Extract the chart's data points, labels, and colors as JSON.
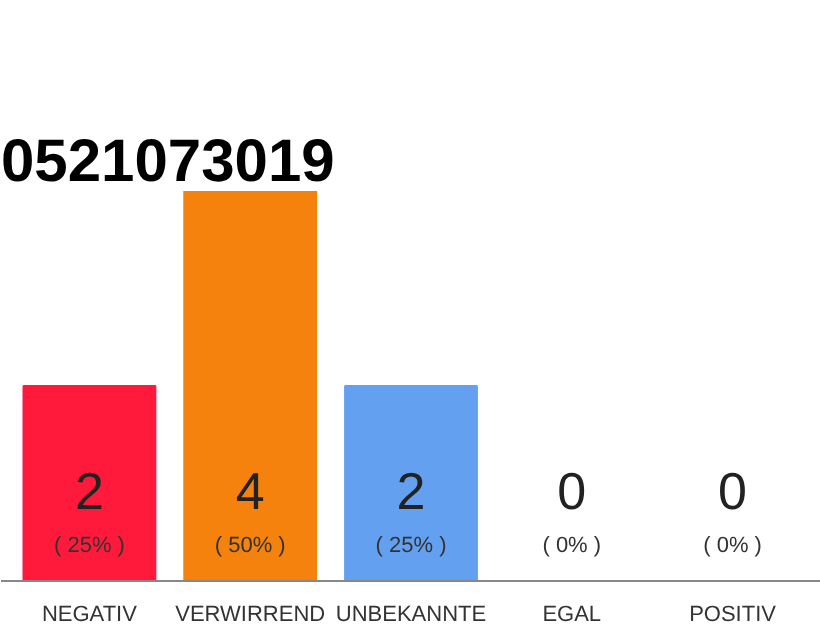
{
  "chart_data": {
    "type": "bar",
    "title": "0521073019",
    "categories": [
      "NEGATIV",
      "VERWIRREND",
      "UNBEKANNTE",
      "EGAL",
      "POSITIV"
    ],
    "values": [
      2,
      4,
      2,
      0,
      0
    ],
    "colors": [
      "#ff1a3c",
      "#f5820d",
      "#64a0f0",
      "#cccccc",
      "#cccccc"
    ],
    "value_labels": [
      "2",
      "4",
      "2",
      "0",
      "0"
    ],
    "annotations": [
      "( 25% )",
      "( 50% )",
      "( 25% )",
      "( 0% )",
      "( 0% )"
    ],
    "grid": false
  }
}
